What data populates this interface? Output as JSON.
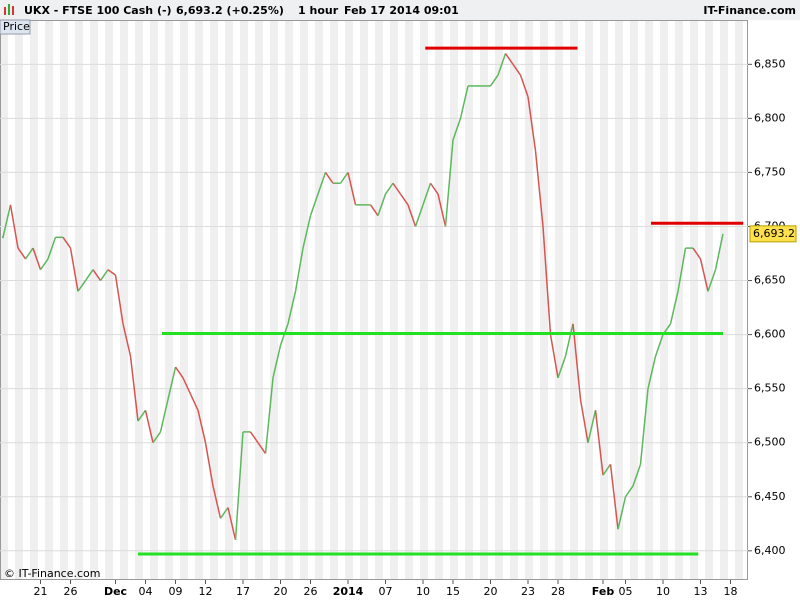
{
  "chart_data": {
    "type": "price",
    "header": {
      "instrument": "UKX - FTSE 100 Cash (-)",
      "quote": "6,693.2 (+0.25%)",
      "interval": "1 hour",
      "timestamp": "Feb 17 2014 09:01",
      "brand": "IT-Finance.com"
    },
    "panel_label": "Price",
    "watermark": "© IT-Finance.com",
    "categories": [
      null,
      null,
      null,
      null,
      null,
      "21",
      null,
      null,
      null,
      "26",
      null,
      null,
      null,
      null,
      null,
      "Dec",
      null,
      null,
      null,
      "04",
      null,
      null,
      null,
      "09",
      null,
      null,
      null,
      "12",
      null,
      null,
      null,
      null,
      "17",
      null,
      null,
      null,
      null,
      "20",
      null,
      null,
      null,
      "26",
      null,
      null,
      null,
      null,
      "2014",
      null,
      null,
      null,
      null,
      "07",
      null,
      null,
      null,
      null,
      "10",
      null,
      null,
      null,
      "15",
      null,
      null,
      null,
      null,
      "20",
      null,
      null,
      null,
      null,
      "23",
      null,
      null,
      null,
      "28",
      null,
      null,
      null,
      null,
      null,
      "Feb",
      null,
      null,
      "05",
      null,
      null,
      null,
      null,
      "10",
      null,
      null,
      null,
      null,
      "13",
      null,
      null,
      null,
      "18"
    ],
    "values": [
      6690,
      6720,
      6680,
      6670,
      6680,
      6660,
      6670,
      6690,
      6690,
      6680,
      6640,
      6650,
      6660,
      6650,
      6660,
      6655,
      6610,
      6580,
      6520,
      6530,
      6500,
      6510,
      6540,
      6570,
      6560,
      6545,
      6530,
      6500,
      6460,
      6430,
      6440,
      6410,
      6510,
      6510,
      6500,
      6490,
      6560,
      6590,
      6610,
      6640,
      6680,
      6710,
      6730,
      6750,
      6740,
      6740,
      6750,
      6720,
      6720,
      6720,
      6710,
      6730,
      6740,
      6730,
      6720,
      6700,
      6720,
      6740,
      6730,
      6700,
      6780,
      6800,
      6830,
      6830,
      6830,
      6830,
      6840,
      6860,
      6850,
      6840,
      6820,
      6770,
      6700,
      6600,
      6560,
      6580,
      6610,
      6540,
      6500,
      6530,
      6470,
      6480,
      6420,
      6450,
      6460,
      6480,
      6550,
      6580,
      6600,
      6610,
      6640,
      6680,
      6680,
      6670,
      6640,
      6660,
      6693.2,
      null
    ],
    "up_color": "#5cb85c",
    "down_color": "#d9534f",
    "last_price": {
      "value": 6693.2,
      "label": "6,693.2"
    },
    "levels": [
      {
        "value": 6865,
        "color": "#e00000",
        "from": 56.3,
        "to": 76.6
      },
      {
        "value": 6703,
        "color": "#e00000",
        "from": 86.4,
        "to": 98.7
      },
      {
        "value": 6601,
        "color": "#22e022",
        "from": 21.2,
        "to": 96.0
      },
      {
        "value": 6397,
        "color": "#22e022",
        "from": 18.0,
        "to": 92.7
      }
    ],
    "ylim": [
      6373,
      6891
    ],
    "yticks": [
      {
        "value": 6400,
        "label": "6,400"
      },
      {
        "value": 6450,
        "label": "6,450"
      },
      {
        "value": 6500,
        "label": "6,500"
      },
      {
        "value": 6550,
        "label": "6,550"
      },
      {
        "value": 6600,
        "label": "6,600"
      },
      {
        "value": 6650,
        "label": "6,650"
      },
      {
        "value": 6700,
        "label": "6,700"
      },
      {
        "value": 6750,
        "label": "6,750"
      },
      {
        "value": 6800,
        "label": "6,800"
      },
      {
        "value": 6850,
        "label": "6,850"
      }
    ],
    "grid": true
  }
}
